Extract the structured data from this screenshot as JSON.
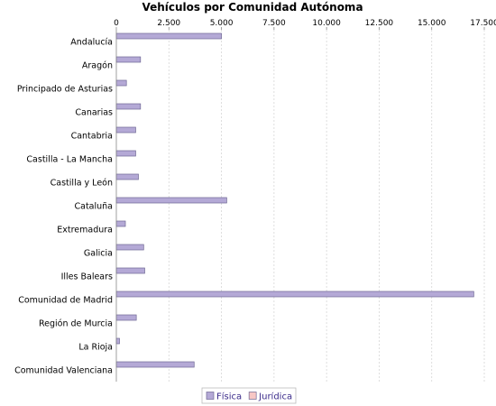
{
  "chart_data": {
    "type": "bar",
    "orientation": "horizontal",
    "title": "Vehículos por Comunidad Autónoma",
    "xlabel": "",
    "ylabel": "",
    "xlim": [
      0,
      17500
    ],
    "x_ticks": [
      0,
      2500,
      5000,
      7500,
      10000,
      12500,
      15000,
      17500
    ],
    "x_tick_labels": [
      "0",
      "2.500",
      "5.000",
      "7.500",
      "10.000",
      "12.500",
      "15.000",
      "17.500"
    ],
    "grid": true,
    "legend_position": "bottom",
    "categories": [
      "Andalucía",
      "Aragón",
      "Principado de Asturias",
      "Canarias",
      "Cantabria",
      "Castilla - La Mancha",
      "Castilla y León",
      "Cataluña",
      "Extremadura",
      "Galicia",
      "Illes Balears",
      "Comunidad de Madrid",
      "Región de Murcia",
      "La Rioja",
      "Comunidad Valenciana"
    ],
    "series": [
      {
        "name": "Física",
        "color": "#b4a9d6",
        "values": [
          5000,
          1150,
          480,
          1150,
          920,
          920,
          1050,
          5250,
          430,
          1300,
          1350,
          17000,
          950,
          150,
          3700
        ]
      },
      {
        "name": "Jurídica",
        "color": "#f7c7c4",
        "values": [
          0,
          0,
          0,
          0,
          0,
          0,
          0,
          0,
          0,
          0,
          0,
          0,
          0,
          0,
          0
        ]
      }
    ]
  }
}
